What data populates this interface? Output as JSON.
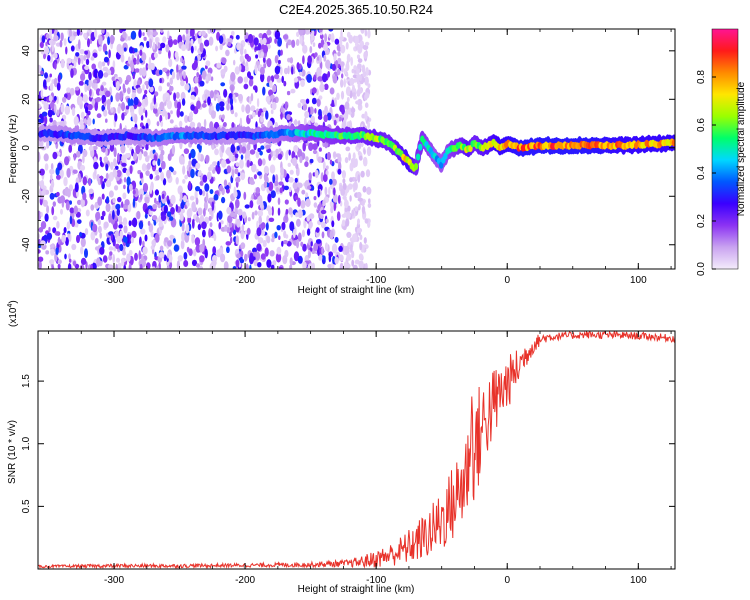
{
  "title": "C2E4.2025.365.10.50.R24",
  "chart_data": [
    {
      "type": "heatmap",
      "name": "spectrogram",
      "xlabel": "Height of straight line (km)",
      "ylabel": "Frequency (Hz)",
      "xlim": [
        -358,
        128
      ],
      "ylim": [
        -50,
        49
      ],
      "xticks": [
        -300,
        -200,
        -100,
        0,
        100
      ],
      "xtick_labels": [
        "-300",
        "-200",
        "-100",
        "0",
        "100"
      ],
      "yticks": [
        -40,
        -20,
        0,
        20,
        40
      ],
      "ytick_labels": [
        "-40",
        "-20",
        "0",
        "20",
        "40"
      ],
      "colorbar": {
        "label": "Normalized spectral amplitude",
        "range": [
          0,
          1
        ],
        "ticks": [
          0.0,
          0.2,
          0.4,
          0.6,
          0.8
        ],
        "tick_labels": [
          "0.0",
          "0.2",
          "0.4",
          "0.6",
          "0.8"
        ],
        "colormap": [
          "#f4ecfb",
          "#c9a3f0",
          "#8c33f3",
          "#3a00ff",
          "#0058ff",
          "#00d8ff",
          "#00ff6a",
          "#9bff00",
          "#ffe600",
          "#ff8a00",
          "#ff1a1a",
          "#ff1493"
        ]
      },
      "ridge": {
        "x": [
          -350,
          -330,
          -310,
          -290,
          -270,
          -250,
          -230,
          -210,
          -190,
          -170,
          -150,
          -130,
          -110,
          -100,
          -90,
          -80,
          -75,
          -70,
          -65,
          -60,
          -55,
          -50,
          -45,
          -40,
          -35,
          -30,
          -25,
          -20,
          -15,
          -10,
          -5,
          0,
          10,
          30,
          60,
          90,
          128
        ],
        "freq": [
          6,
          5,
          4,
          5,
          4,
          5,
          5,
          5,
          5,
          6,
          6,
          5,
          5,
          4,
          2,
          -3,
          -6,
          -9,
          4,
          0,
          -4,
          -7,
          -1,
          0,
          1,
          -1,
          2,
          0,
          1,
          2,
          0,
          2,
          0,
          1,
          1,
          1,
          2
        ],
        "amplitude": [
          0.3,
          0.35,
          0.3,
          0.3,
          0.35,
          0.4,
          0.35,
          0.3,
          0.35,
          0.4,
          0.5,
          0.55,
          0.6,
          0.65,
          0.6,
          0.7,
          0.75,
          0.6,
          0.55,
          0.5,
          0.45,
          0.45,
          0.5,
          0.55,
          0.6,
          0.7,
          0.6,
          0.65,
          0.7,
          0.75,
          0.8,
          0.8,
          0.85,
          0.85,
          0.85,
          0.8,
          0.8
        ]
      },
      "noise_extent_km": [
        -358,
        -125
      ]
    },
    {
      "type": "line",
      "name": "snr",
      "xlabel": "Height of straight line (km)",
      "ylabel": "SNR (10 * v/v)",
      "multiplier_label": "(x10",
      "multiplier_exp": "4",
      "multiplier_close": ")",
      "color": "#e8322a",
      "xlim": [
        -358,
        128
      ],
      "ylim": [
        0,
        19000
      ],
      "xticks": [
        -300,
        -200,
        -100,
        0,
        100
      ],
      "xtick_labels": [
        "-300",
        "-200",
        "-100",
        "0",
        "100"
      ],
      "yticks": [
        5000,
        10000,
        15000
      ],
      "ytick_labels": [
        "0.5",
        "1.0",
        "1.5"
      ],
      "x": [
        -358,
        -300,
        -250,
        -200,
        -150,
        -120,
        -110,
        -100,
        -90,
        -80,
        -70,
        -60,
        -55,
        -50,
        -45,
        -40,
        -35,
        -30,
        -28,
        -25,
        -22,
        -20,
        -18,
        -15,
        -10,
        -5,
        0,
        5,
        10,
        15,
        20,
        25,
        30,
        40,
        60,
        90,
        110,
        128
      ],
      "y": [
        200,
        250,
        250,
        300,
        350,
        450,
        600,
        800,
        1100,
        1500,
        2100,
        2800,
        3300,
        3900,
        4700,
        5500,
        6500,
        8000,
        12000,
        9000,
        10500,
        11000,
        11500,
        12300,
        13200,
        14000,
        14800,
        15600,
        16400,
        17200,
        17900,
        18300,
        18500,
        18600,
        18700,
        18650,
        18550,
        18400
      ],
      "noise_amp": [
        100,
        150,
        150,
        150,
        200,
        300,
        500,
        700,
        900,
        1200,
        1600,
        2000,
        2300,
        2600,
        2900,
        3200,
        3600,
        4000,
        5000,
        4500,
        4200,
        4000,
        3800,
        3400,
        3000,
        2600,
        2200,
        1800,
        1400,
        1000,
        700,
        500,
        400,
        300,
        300,
        300,
        300,
        300
      ]
    }
  ]
}
